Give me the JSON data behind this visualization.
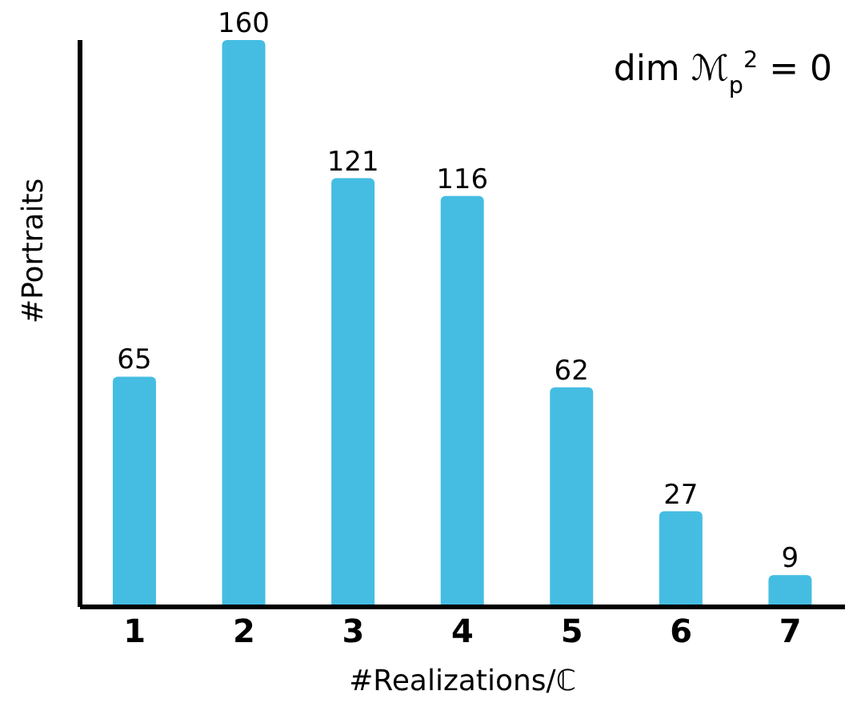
{
  "chart_data": {
    "type": "bar",
    "categories": [
      "1",
      "2",
      "3",
      "4",
      "5",
      "6",
      "7"
    ],
    "values": [
      65,
      160,
      121,
      116,
      62,
      27,
      9
    ],
    "color": "#45bde2",
    "data_labels": true,
    "xlabel": "#Realizations/ℂ",
    "ylabel": "#Portraits",
    "annotations": [
      "dim ℳ$_{p}$$^{2}$ = 0"
    ],
    "grid": false,
    "legend": false
  }
}
